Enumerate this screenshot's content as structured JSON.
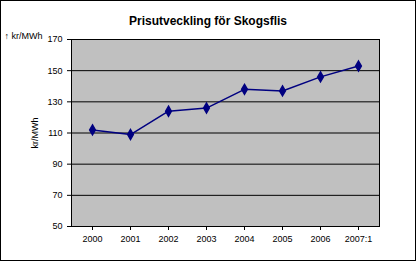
{
  "chart_data": {
    "type": "line",
    "title": "Prisutveckling för Skogsflis",
    "y_label": "kr/MWh",
    "categories": [
      "2000",
      "2001",
      "2002",
      "2003",
      "2004",
      "2005",
      "2006",
      "2007:1"
    ],
    "values": [
      112,
      109,
      124,
      126,
      138,
      137,
      146,
      153
    ],
    "color": "#000080",
    "marker": "diamond",
    "line_style": "solid",
    "ylim": [
      50,
      170
    ],
    "yticks": [
      50,
      70,
      90,
      110,
      130,
      150,
      170
    ],
    "grid": true
  }
}
